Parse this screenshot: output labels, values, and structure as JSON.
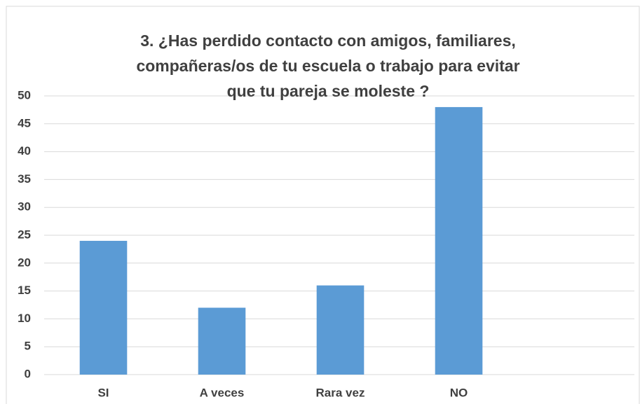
{
  "chart_data": {
    "type": "bar",
    "title": [
      "3. ¿Has perdido contacto con amigos, familiares,",
      "compañeras/os de tu escuela o trabajo para evitar",
      "que tu pareja se moleste ?"
    ],
    "categories": [
      "SI",
      "A veces",
      "Rara vez",
      "NO"
    ],
    "values": [
      24,
      12,
      16,
      48
    ],
    "color": "#5b9bd5",
    "ylim": [
      0,
      50
    ],
    "yticks": [
      0,
      5,
      10,
      15,
      20,
      25,
      30,
      35,
      40,
      45,
      50
    ],
    "grid": true
  }
}
